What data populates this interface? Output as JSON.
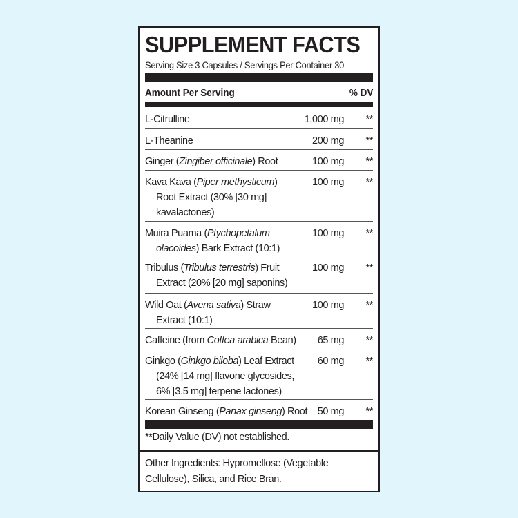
{
  "title": "SUPPLEMENT FACTS",
  "serving": "Serving Size 3 Capsules / Servings Per Container 30",
  "header": {
    "amount": "Amount Per Serving",
    "dv": "% DV"
  },
  "rows": [
    {
      "lines": [
        [
          {
            "t": "L-Citrulline"
          }
        ]
      ],
      "amount": "1,000 mg",
      "dv": "**"
    },
    {
      "lines": [
        [
          {
            "t": "L-Theanine"
          }
        ]
      ],
      "amount": "200 mg",
      "dv": "**"
    },
    {
      "lines": [
        [
          {
            "t": "Ginger ("
          },
          {
            "t": "Zingiber officinale",
            "i": true
          },
          {
            "t": ") Root"
          }
        ]
      ],
      "amount": "100 mg",
      "dv": "**"
    },
    {
      "lines": [
        [
          {
            "t": "Kava Kava ("
          },
          {
            "t": "Piper methysticum",
            "i": true
          },
          {
            "t": ")"
          }
        ],
        [
          {
            "t": "Root Extract (30% [30 mg]"
          }
        ],
        [
          {
            "t": "kavalactones)"
          }
        ]
      ],
      "amount": "100 mg",
      "dv": "**"
    },
    {
      "lines": [
        [
          {
            "t": "Muira Puama ("
          },
          {
            "t": "Ptychopetalum",
            "i": true
          }
        ],
        [
          {
            "t": "olacoides",
            "i": true
          },
          {
            "t": ") Bark Extract (10:1)"
          }
        ]
      ],
      "amount": "100 mg",
      "dv": "**"
    },
    {
      "lines": [
        [
          {
            "t": "Tribulus ("
          },
          {
            "t": "Tribulus terrestris",
            "i": true
          },
          {
            "t": ") Fruit"
          }
        ],
        [
          {
            "t": "Extract (20% [20 mg] saponins)"
          }
        ]
      ],
      "amount": "100 mg",
      "dv": "**"
    },
    {
      "lines": [
        [
          {
            "t": "Wild Oat ("
          },
          {
            "t": "Avena sativa",
            "i": true
          },
          {
            "t": ") Straw"
          }
        ],
        [
          {
            "t": "Extract (10:1)"
          }
        ]
      ],
      "amount": "100 mg",
      "dv": "**"
    },
    {
      "lines": [
        [
          {
            "t": "Caffeine (from "
          },
          {
            "t": "Coffea arabica",
            "i": true
          },
          {
            "t": " Bean)"
          }
        ]
      ],
      "amount": "65 mg",
      "dv": "**"
    },
    {
      "lines": [
        [
          {
            "t": "Ginkgo ("
          },
          {
            "t": "Ginkgo biloba",
            "i": true
          },
          {
            "t": ") Leaf Extract"
          }
        ],
        [
          {
            "t": "(24% [14 mg] flavone glycosides,"
          }
        ],
        [
          {
            "t": "6% [3.5 mg] terpene lactones)"
          }
        ]
      ],
      "amount": "60 mg",
      "dv": "**"
    },
    {
      "lines": [
        [
          {
            "t": "Korean Ginseng ("
          },
          {
            "t": "Panax ginseng",
            "i": true
          },
          {
            "t": ") Root"
          }
        ]
      ],
      "amount": "50 mg",
      "dv": "**"
    }
  ],
  "footnote": "**Daily Value (DV) not established.",
  "other_ingredients": "Other Ingredients: Hypromellose (Vegetable Cellulose), Silica, and Rice Bran."
}
